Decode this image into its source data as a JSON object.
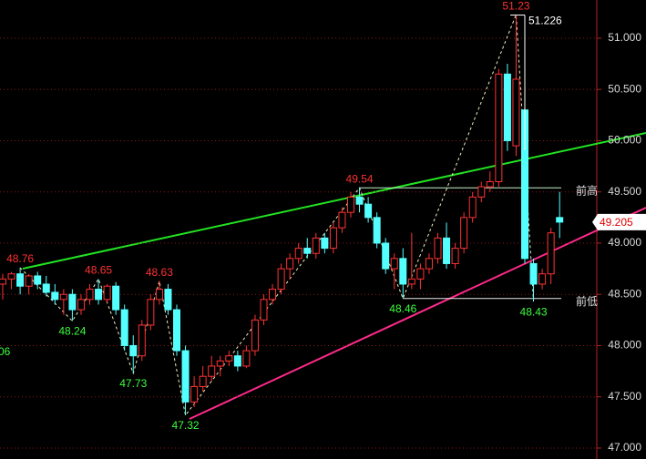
{
  "chart_data": {
    "type": "candlestick",
    "ylim": [
      46.893,
      51.373
    ],
    "yticks": [
      {
        "value": 47,
        "label": "47.000"
      },
      {
        "value": 47.5,
        "label": "47.500"
      },
      {
        "value": 48,
        "label": "48.000"
      },
      {
        "value": 48.5,
        "label": "48.500"
      },
      {
        "value": 49,
        "label": "49.000"
      },
      {
        "value": 49.5,
        "label": "49.500"
      },
      {
        "value": 50,
        "label": "50.000"
      },
      {
        "value": 50.5,
        "label": "50.500"
      },
      {
        "value": 51,
        "label": "51.000"
      }
    ],
    "grid": true,
    "up_color": "#ff3232",
    "down_color": "#54ffff",
    "candles": [
      [
        48.6,
        48.7,
        48.45,
        48.65
      ],
      [
        48.65,
        48.72,
        48.55,
        48.7
      ],
      [
        48.7,
        48.76,
        48.5,
        48.58
      ],
      [
        48.58,
        48.7,
        48.5,
        48.68
      ],
      [
        48.68,
        48.72,
        48.55,
        48.6
      ],
      [
        48.6,
        48.68,
        48.48,
        48.52
      ],
      [
        48.52,
        48.6,
        48.4,
        48.45
      ],
      [
        48.45,
        48.55,
        48.3,
        48.5
      ],
      [
        48.5,
        48.55,
        48.24,
        48.35
      ],
      [
        48.35,
        48.5,
        48.3,
        48.45
      ],
      [
        48.45,
        48.6,
        48.4,
        48.55
      ],
      [
        48.55,
        48.65,
        48.4,
        48.45
      ],
      [
        48.45,
        48.6,
        48.42,
        48.58
      ],
      [
        48.58,
        48.62,
        48.3,
        48.35
      ],
      [
        48.35,
        48.4,
        47.95,
        48.0
      ],
      [
        48.0,
        48.1,
        47.73,
        47.9
      ],
      [
        47.9,
        48.25,
        47.85,
        48.2
      ],
      [
        48.2,
        48.5,
        48.15,
        48.45
      ],
      [
        48.45,
        48.63,
        48.4,
        48.55
      ],
      [
        48.55,
        48.6,
        48.3,
        48.35
      ],
      [
        48.35,
        48.4,
        47.9,
        47.95
      ],
      [
        47.95,
        48.0,
        47.32,
        47.45
      ],
      [
        47.45,
        47.7,
        47.4,
        47.6
      ],
      [
        47.6,
        47.8,
        47.55,
        47.7
      ],
      [
        47.7,
        47.9,
        47.65,
        47.8
      ],
      [
        47.8,
        47.9,
        47.7,
        47.85
      ],
      [
        47.85,
        47.95,
        47.8,
        47.9
      ],
      [
        47.9,
        47.95,
        47.75,
        47.8
      ],
      [
        47.8,
        48.0,
        47.78,
        47.95
      ],
      [
        47.95,
        48.3,
        47.9,
        48.25
      ],
      [
        48.25,
        48.5,
        48.2,
        48.45
      ],
      [
        48.45,
        48.6,
        48.4,
        48.55
      ],
      [
        48.55,
        48.8,
        48.5,
        48.75
      ],
      [
        48.75,
        48.9,
        48.65,
        48.85
      ],
      [
        48.85,
        49.0,
        48.8,
        48.95
      ],
      [
        48.95,
        49.05,
        48.85,
        48.9
      ],
      [
        48.9,
        49.1,
        48.85,
        49.05
      ],
      [
        49.05,
        49.1,
        48.9,
        48.95
      ],
      [
        48.95,
        49.2,
        48.9,
        49.15
      ],
      [
        49.15,
        49.35,
        49.1,
        49.3
      ],
      [
        49.3,
        49.5,
        49.25,
        49.45
      ],
      [
        49.45,
        49.54,
        49.3,
        49.38
      ],
      [
        49.38,
        49.45,
        49.2,
        49.25
      ],
      [
        49.25,
        49.3,
        48.95,
        49.0
      ],
      [
        49.0,
        49.05,
        48.7,
        48.75
      ],
      [
        48.75,
        48.9,
        48.55,
        48.85
      ],
      [
        48.85,
        48.95,
        48.46,
        48.6
      ],
      [
        48.6,
        49.1,
        48.55,
        48.65
      ],
      [
        48.65,
        48.8,
        48.55,
        48.75
      ],
      [
        48.75,
        48.9,
        48.7,
        48.85
      ],
      [
        48.85,
        49.1,
        48.8,
        49.05
      ],
      [
        49.05,
        49.2,
        48.75,
        48.8
      ],
      [
        48.8,
        49.0,
        48.75,
        48.95
      ],
      [
        48.95,
        49.3,
        48.9,
        49.25
      ],
      [
        49.25,
        49.5,
        49.2,
        49.45
      ],
      [
        49.45,
        49.6,
        49.4,
        49.55
      ],
      [
        49.55,
        49.7,
        49.5,
        49.6
      ],
      [
        49.6,
        50.7,
        49.55,
        50.65
      ],
      [
        50.65,
        50.75,
        49.9,
        50.0
      ],
      [
        49.95,
        51.23,
        49.85,
        50.6
      ],
      [
        50.3,
        50.35,
        48.8,
        48.85
      ],
      [
        48.8,
        48.85,
        48.43,
        48.6
      ],
      [
        48.6,
        48.75,
        48.55,
        48.7
      ],
      [
        48.7,
        49.15,
        48.6,
        49.1
      ],
      [
        49.25,
        49.5,
        49.05,
        49.205
      ]
    ],
    "pivots": [
      {
        "candle": 2,
        "value": 48.76,
        "type": "high"
      },
      {
        "candle": 8,
        "value": 48.24,
        "type": "low"
      },
      {
        "candle": 11,
        "value": 48.65,
        "type": "high"
      },
      {
        "candle": 15,
        "value": 47.73,
        "type": "low"
      },
      {
        "candle": 18,
        "value": 48.63,
        "type": "high"
      },
      {
        "candle": 21,
        "value": 47.32,
        "type": "low"
      },
      {
        "candle": 41,
        "value": 49.54,
        "type": "high"
      },
      {
        "candle": 46,
        "value": 48.46,
        "type": "low"
      },
      {
        "candle": 59,
        "value": 51.23,
        "type": "high"
      },
      {
        "candle": 61,
        "value": 48.43,
        "type": "low"
      }
    ],
    "high_marker": 51.226,
    "last_price": 49.205,
    "level_labels": [
      "前高",
      "前低"
    ],
    "edge_label": "06"
  }
}
